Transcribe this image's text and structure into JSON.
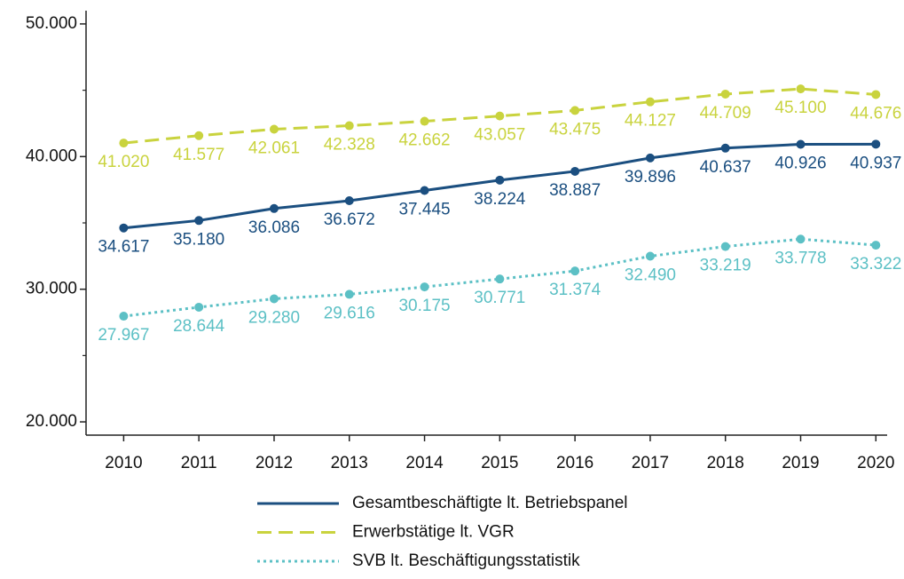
{
  "chart_data": {
    "type": "line",
    "x": [
      2010,
      2011,
      2012,
      2013,
      2014,
      2015,
      2016,
      2017,
      2018,
      2019,
      2020
    ],
    "xlim": [
      2009.5,
      2020.15
    ],
    "xticks": [
      2010,
      2011,
      2012,
      2013,
      2014,
      2015,
      2016,
      2017,
      2018,
      2019,
      2020
    ],
    "ylim": [
      19000,
      51000
    ],
    "yticks": [
      {
        "value": 20000,
        "label": "20.000"
      },
      {
        "value": 30000,
        "label": "30.000"
      },
      {
        "value": 40000,
        "label": "40.000"
      },
      {
        "value": 50000,
        "label": "50.000"
      }
    ],
    "yminorticks": [
      25000,
      35000,
      45000
    ],
    "legend": "bottom",
    "series": [
      {
        "name": "Gesamtbeschäftigte lt. Betriebspanel",
        "color": "#1b4f80",
        "line_style": "solid",
        "values": [
          34617,
          35180,
          36086,
          36672,
          37445,
          38224,
          38887,
          39896,
          40637,
          40926,
          40937
        ],
        "value_labels": [
          "34.617",
          "35.180",
          "36.086",
          "36.672",
          "37.445",
          "38.224",
          "38.887",
          "39.896",
          "40.637",
          "40.926",
          "40.937"
        ]
      },
      {
        "name": "Erwerbstätige lt. VGR",
        "color": "#c9d33e",
        "line_style": "dashed",
        "values": [
          41020,
          41577,
          42061,
          42328,
          42662,
          43057,
          43475,
          44127,
          44709,
          45100,
          44676
        ],
        "value_labels": [
          "41.020",
          "41.577",
          "42.061",
          "42.328",
          "42.662",
          "43.057",
          "43.475",
          "44.127",
          "44.709",
          "45.100",
          "44.676"
        ]
      },
      {
        "name": "SVB lt. Beschäftigungsstatistik",
        "color": "#5cc0c5",
        "line_style": "dotted",
        "values": [
          27967,
          28644,
          29280,
          29616,
          30175,
          30771,
          31374,
          32490,
          33219,
          33778,
          33322
        ],
        "value_labels": [
          "27.967",
          "28.644",
          "29.280",
          "29.616",
          "30.175",
          "30.771",
          "31.374",
          "32.490",
          "33.219",
          "33.778",
          "33.322"
        ]
      }
    ]
  }
}
